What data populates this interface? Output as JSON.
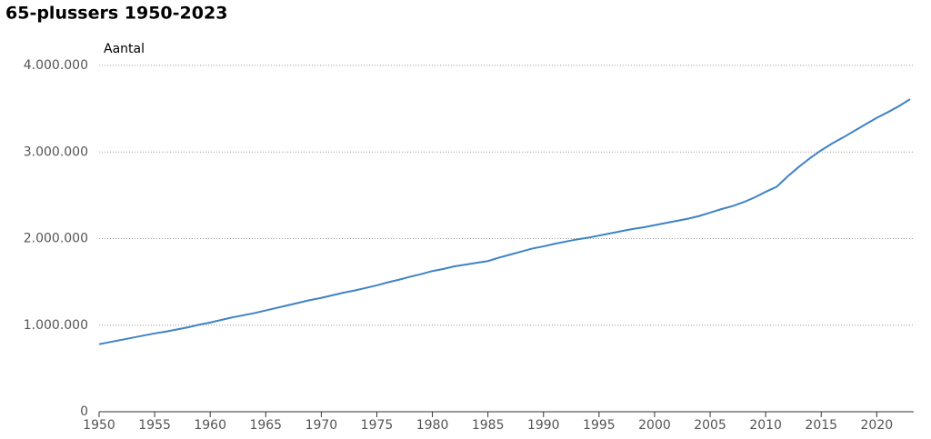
{
  "chart_data": {
    "type": "line",
    "title": "65-plussers 1950-2023",
    "y_label": "Aantal",
    "x": [
      1950,
      1951,
      1952,
      1953,
      1954,
      1955,
      1956,
      1957,
      1958,
      1959,
      1960,
      1961,
      1962,
      1963,
      1964,
      1965,
      1966,
      1967,
      1968,
      1969,
      1970,
      1971,
      1972,
      1973,
      1974,
      1975,
      1976,
      1977,
      1978,
      1979,
      1980,
      1981,
      1982,
      1983,
      1984,
      1985,
      1986,
      1987,
      1988,
      1989,
      1990,
      1991,
      1992,
      1993,
      1994,
      1995,
      1996,
      1997,
      1998,
      1999,
      2000,
      2001,
      2002,
      2003,
      2004,
      2005,
      2006,
      2007,
      2008,
      2009,
      2010,
      2011,
      2012,
      2013,
      2014,
      2015,
      2016,
      2017,
      2018,
      2019,
      2020,
      2021,
      2022,
      2023
    ],
    "values": [
      780000,
      805000,
      830000,
      855000,
      880000,
      905000,
      925000,
      950000,
      975000,
      1005000,
      1030000,
      1060000,
      1090000,
      1115000,
      1140000,
      1170000,
      1200000,
      1230000,
      1260000,
      1290000,
      1315000,
      1345000,
      1375000,
      1400000,
      1430000,
      1460000,
      1495000,
      1525000,
      1560000,
      1590000,
      1625000,
      1650000,
      1680000,
      1700000,
      1720000,
      1740000,
      1780000,
      1815000,
      1850000,
      1885000,
      1910000,
      1940000,
      1965000,
      1990000,
      2010000,
      2035000,
      2060000,
      2085000,
      2110000,
      2130000,
      2155000,
      2180000,
      2205000,
      2230000,
      2260000,
      2300000,
      2340000,
      2375000,
      2420000,
      2475000,
      2540000,
      2600000,
      2720000,
      2830000,
      2930000,
      3020000,
      3100000,
      3170000,
      3245000,
      3320000,
      3395000,
      3460000,
      3530000,
      3610000
    ],
    "color": "#3f83c5",
    "xlim": [
      1950,
      2023
    ],
    "xticks": [
      1950,
      1955,
      1960,
      1965,
      1970,
      1975,
      1980,
      1985,
      1990,
      1995,
      2000,
      2005,
      2010,
      2015,
      2020
    ],
    "ylim": [
      0,
      4000000
    ],
    "yticks": [
      0,
      {
        "value": 1000000,
        "label": "1.000.000"
      },
      {
        "value": 2000000,
        "label": "2.000.000"
      },
      {
        "value": 3000000,
        "label": "3.000.000"
      },
      {
        "value": 4000000,
        "label": "4.000.000"
      }
    ],
    "grid": true
  }
}
